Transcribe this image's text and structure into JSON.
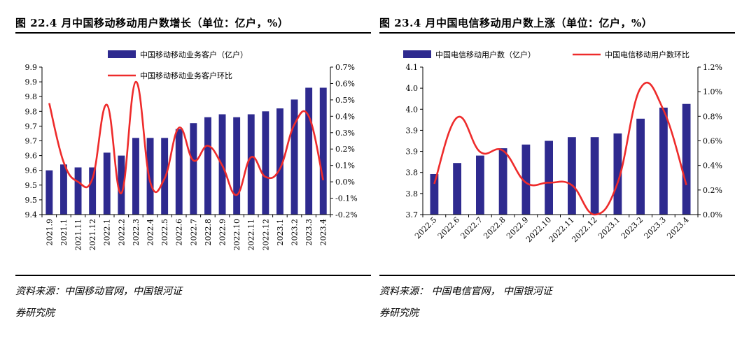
{
  "charts": [
    {
      "title": "图 22.4 月中国移动移动用户数增长（单位：亿户，%）",
      "source_line1": "资料来源：中国移动官网，中国银河证",
      "source_line2": "券研究院"
    },
    {
      "title": "图 23.4 月中国电信移动用户数上涨（单位：亿户，%）",
      "source_line1": "资料来源： 中国电信官网， 中国银河证",
      "source_line2": "券研究院"
    }
  ],
  "colors": {
    "bar": "#2e2a8f",
    "line": "#ee2b2b",
    "axis": "#000000"
  },
  "chart_data": [
    {
      "type": "bar+line",
      "categories": [
        "2021.9",
        "2021.1",
        "2021.11",
        "2021.12",
        "2022.1",
        "2022.2",
        "2022.3",
        "2022.4",
        "2022.5",
        "2022.6",
        "2022.7",
        "2022.8",
        "2022.9",
        "2022.10",
        "2022.11",
        "2022.12",
        "2023.1",
        "2023.2",
        "2023.3",
        "2023.4"
      ],
      "series": [
        {
          "name": "中国移动移动业务客户（亿户）",
          "axis": "left",
          "type": "bar",
          "values": [
            9.55,
            9.57,
            9.56,
            9.56,
            9.61,
            9.6,
            9.66,
            9.66,
            9.66,
            9.69,
            9.71,
            9.73,
            9.74,
            9.73,
            9.74,
            9.75,
            9.76,
            9.79,
            9.83,
            9.83
          ]
        },
        {
          "name": "中国移动移动业务客户环比",
          "axis": "right",
          "type": "line",
          "values": [
            0.48,
            0.12,
            0.0,
            0.02,
            0.47,
            -0.07,
            0.61,
            0.0,
            0.02,
            0.33,
            0.13,
            0.22,
            0.1,
            -0.08,
            0.15,
            0.03,
            0.08,
            0.35,
            0.4,
            0.01
          ]
        }
      ],
      "y_left": {
        "ylim": [
          9.4,
          9.9
        ],
        "tick_labels": [
          "9.4",
          "9.5",
          "9.5",
          "9.6",
          "9.6",
          "9.7",
          "9.7",
          "9.8",
          "9.8",
          "9.9",
          "9.9"
        ]
      },
      "y_right": {
        "ylim": [
          -0.2,
          0.7
        ],
        "tick_labels": [
          "-0.2%",
          "-0.1%",
          "0.0%",
          "0.1%",
          "0.2%",
          "0.3%",
          "0.4%",
          "0.5%",
          "0.6%",
          "0.7%"
        ]
      },
      "legend_placement": "top-center"
    },
    {
      "type": "bar+line",
      "categories": [
        "2022.5",
        "2022.6",
        "2022.7",
        "2022.8",
        "2022.9",
        "2022.10",
        "2022.11",
        "2022.12",
        "2023.1",
        "2023.2",
        "2023.3",
        "2023.4"
      ],
      "series": [
        {
          "name": "中国电信移动用户数（亿户）",
          "axis": "left",
          "type": "bar",
          "values": [
            3.81,
            3.84,
            3.86,
            3.88,
            3.89,
            3.9,
            3.91,
            3.91,
            3.92,
            3.96,
            3.99,
            4.0
          ]
        },
        {
          "name": "中国电信移动用户数环比",
          "axis": "right",
          "type": "line",
          "values": [
            0.25,
            0.79,
            0.51,
            0.52,
            0.26,
            0.26,
            0.24,
            0.0,
            0.26,
            1.03,
            0.85,
            0.24
          ]
        }
      ],
      "y_left": {
        "ylim": [
          3.7,
          4.1
        ],
        "tick_labels": [
          "3.7",
          "3.8",
          "3.8",
          "3.9",
          "3.9",
          "4.0",
          "4.0",
          "4.1"
        ]
      },
      "y_right": {
        "ylim": [
          0.0,
          1.2
        ],
        "tick_labels": [
          "0.0%",
          "0.2%",
          "0.4%",
          "0.6%",
          "0.8%",
          "1.0%",
          "1.2%"
        ]
      },
      "legend_placement": "top"
    }
  ]
}
